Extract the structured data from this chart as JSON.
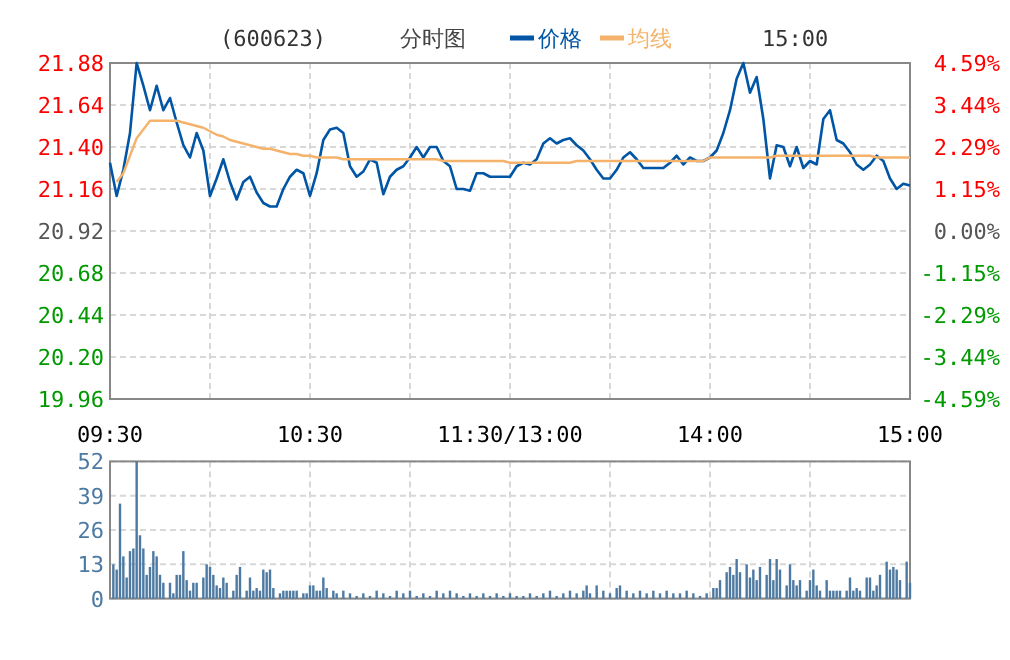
{
  "chart_data": [
    {
      "type": "line",
      "title": "分时图",
      "subtitle": "(600623)",
      "annotations": [
        "15:00"
      ],
      "legend": "top",
      "grid": true,
      "categories": [
        "09:30",
        null,
        null,
        null,
        null,
        null,
        null,
        null,
        null,
        null,
        null,
        null,
        null,
        null,
        null,
        null,
        null,
        null,
        null,
        null,
        null,
        null,
        null,
        null,
        null,
        null,
        null,
        null,
        null,
        null,
        "10:30",
        null,
        null,
        null,
        null,
        null,
        null,
        null,
        null,
        null,
        null,
        null,
        null,
        null,
        null,
        null,
        null,
        null,
        null,
        null,
        null,
        null,
        null,
        null,
        null,
        null,
        null,
        null,
        null,
        null,
        "11:30/13:00",
        null,
        null,
        null,
        null,
        null,
        null,
        null,
        null,
        null,
        null,
        null,
        null,
        null,
        null,
        null,
        null,
        null,
        null,
        null,
        null,
        null,
        null,
        null,
        null,
        null,
        null,
        null,
        null,
        null,
        "14:00",
        null,
        null,
        null,
        null,
        null,
        null,
        null,
        null,
        null,
        null,
        null,
        null,
        null,
        null,
        null,
        null,
        null,
        null,
        null,
        null,
        null,
        null,
        null,
        null,
        null,
        null,
        null,
        null,
        null,
        "15:00"
      ],
      "ylim": [
        19.96,
        21.88
      ],
      "yticks": [
        19.96,
        {
          "value": 20.2,
          "label": "20.20"
        },
        20.44,
        20.68,
        20.92,
        21.16,
        {
          "value": 21.4,
          "label": "21.40"
        },
        21.64,
        21.88
      ],
      "y2lim": [
        -4.59,
        4.59
      ],
      "y2ticks": [
        {
          "value": -4.59,
          "label": "-4.59%"
        },
        {
          "value": -3.44,
          "label": "-3.44%"
        },
        {
          "value": -2.29,
          "label": "-2.29%"
        },
        {
          "value": -1.15,
          "label": "-1.15%"
        },
        {
          "value": 0,
          "label": "0.00%"
        },
        {
          "value": 1.15,
          "label": "1.15%"
        },
        {
          "value": 2.29,
          "label": "2.29%"
        },
        {
          "value": 3.44,
          "label": "3.44%"
        },
        {
          "value": 4.59,
          "label": "4.59%"
        }
      ],
      "series": [
        {
          "name": "价格",
          "color": "#0055a5",
          "values": [
            21.31,
            21.12,
            21.27,
            21.48,
            21.88,
            21.75,
            21.61,
            21.75,
            21.61,
            21.68,
            21.54,
            21.41,
            21.34,
            21.48,
            21.38,
            21.12,
            21.22,
            21.33,
            21.2,
            21.1,
            21.2,
            21.23,
            21.14,
            21.08,
            21.06,
            21.06,
            21.16,
            21.23,
            21.27,
            21.25,
            21.12,
            21.25,
            21.44,
            21.5,
            21.51,
            21.48,
            21.29,
            21.23,
            21.26,
            21.33,
            21.31,
            21.13,
            21.23,
            21.27,
            21.29,
            21.34,
            21.4,
            21.34,
            21.4,
            21.4,
            21.32,
            21.29,
            21.16,
            21.16,
            21.15,
            21.25,
            21.25,
            21.23,
            21.23,
            21.23,
            21.23,
            21.29,
            21.31,
            21.3,
            21.33,
            21.42,
            21.45,
            21.42,
            21.44,
            21.45,
            21.41,
            21.38,
            21.33,
            21.27,
            21.22,
            21.22,
            21.27,
            21.34,
            21.37,
            21.33,
            21.28,
            21.28,
            21.28,
            21.28,
            21.31,
            21.35,
            21.3,
            21.34,
            21.32,
            21.32,
            21.34,
            21.38,
            21.48,
            21.61,
            21.79,
            21.88,
            21.71,
            21.8,
            21.56,
            21.22,
            21.41,
            21.4,
            21.29,
            21.4,
            21.28,
            21.32,
            21.3,
            21.56,
            21.61,
            21.44,
            21.42,
            21.37,
            21.3,
            21.27,
            21.3,
            21.35,
            21.32,
            21.22,
            21.16,
            21.19,
            21.18
          ]
        },
        {
          "name": "均线",
          "color": "#f5b26b",
          "values": [
            null,
            21.2,
            21.25,
            21.35,
            21.45,
            21.5,
            21.55,
            21.55,
            21.55,
            21.55,
            21.55,
            21.54,
            21.53,
            21.52,
            21.51,
            21.49,
            21.47,
            21.46,
            21.44,
            21.43,
            21.42,
            21.41,
            21.4,
            21.39,
            21.39,
            21.38,
            21.37,
            21.36,
            21.36,
            21.35,
            21.35,
            21.34,
            21.34,
            21.34,
            21.34,
            21.33,
            21.33,
            21.33,
            21.33,
            21.33,
            21.33,
            21.33,
            21.33,
            21.33,
            21.33,
            21.33,
            21.33,
            21.33,
            21.33,
            21.33,
            21.32,
            21.32,
            21.32,
            21.32,
            21.32,
            21.32,
            21.32,
            21.32,
            21.32,
            21.32,
            21.31,
            21.31,
            21.31,
            21.31,
            21.31,
            21.31,
            21.31,
            21.31,
            21.31,
            21.31,
            21.32,
            21.32,
            21.32,
            21.32,
            21.32,
            21.32,
            21.32,
            21.32,
            21.32,
            21.32,
            21.32,
            21.32,
            21.32,
            21.32,
            21.32,
            21.32,
            21.32,
            21.32,
            21.32,
            21.32,
            21.34,
            21.34,
            21.34,
            21.34,
            21.34,
            21.34,
            21.34,
            21.34,
            21.34,
            21.34,
            21.35,
            21.35,
            21.35,
            21.35,
            21.35,
            21.35,
            21.35,
            21.35,
            21.35,
            21.35,
            21.35,
            21.35,
            21.35,
            21.35,
            21.35,
            21.34,
            21.34,
            21.34,
            21.34,
            21.34,
            21.34
          ]
        }
      ]
    },
    {
      "type": "bar",
      "grid": true,
      "tick_labels": "y",
      "color": "#4d7aa3",
      "categories": [
        null,
        null,
        null,
        null,
        null,
        null,
        null,
        null,
        null,
        null,
        null,
        null,
        null,
        null,
        null,
        null,
        null,
        null,
        null,
        null,
        null,
        null,
        null,
        null,
        null,
        null,
        null,
        null,
        null,
        null,
        null,
        null,
        null,
        null,
        null,
        null,
        null,
        null,
        null,
        null,
        null,
        null,
        null,
        null,
        null,
        null,
        null,
        null,
        null,
        null,
        null,
        null,
        null,
        null,
        null,
        null,
        null,
        null,
        null,
        null,
        null,
        null,
        null,
        null,
        null,
        null,
        null,
        null,
        null,
        null,
        null,
        null,
        null,
        null,
        null,
        null,
        null,
        null,
        null,
        null,
        null,
        null,
        null,
        null,
        null,
        null,
        null,
        null,
        null,
        null,
        null,
        null,
        null,
        null,
        null,
        null,
        null,
        null,
        null,
        null,
        null,
        null,
        null,
        null,
        null,
        null,
        null,
        null,
        null,
        null,
        null,
        null,
        null,
        null,
        null,
        null,
        null,
        null,
        null,
        null,
        null,
        null,
        null,
        null,
        null,
        null,
        null,
        null,
        null,
        null,
        null,
        null,
        null,
        null,
        null,
        null,
        null,
        null,
        null,
        null,
        null,
        null,
        null,
        null,
        null,
        null,
        null,
        null,
        null,
        null,
        null,
        null,
        null,
        null,
        null,
        null,
        null,
        null,
        null,
        null,
        null,
        null,
        null,
        null,
        null,
        null,
        null,
        null,
        null,
        null,
        null,
        null,
        null,
        null,
        null,
        null,
        null,
        null,
        null,
        null,
        null,
        null,
        null,
        null,
        null,
        null,
        null,
        null,
        null,
        null,
        null,
        null,
        null,
        null,
        null,
        null,
        null,
        null,
        null,
        null,
        null,
        null,
        null,
        null,
        null,
        null,
        null,
        null,
        null,
        null,
        null,
        null,
        null,
        null,
        null,
        null,
        null,
        null,
        null,
        null,
        null,
        null,
        null,
        null,
        null,
        null,
        null,
        null,
        null,
        null,
        null,
        null,
        null,
        null,
        null,
        null,
        null,
        null,
        null,
        null,
        null
      ],
      "ylim": [
        0,
        52
      ],
      "yticks": [
        0,
        13,
        26,
        39,
        52
      ],
      "values": [
        null,
        13,
        11,
        36,
        16,
        8,
        18,
        19,
        52,
        24,
        19,
        9,
        12,
        18,
        16,
        9,
        6,
        null,
        6,
        2,
        9,
        9,
        18,
        7,
        3,
        6,
        6,
        null,
        8,
        13,
        12,
        9,
        5,
        4,
        8,
        6,
        null,
        3,
        9,
        12,
        null,
        3,
        8,
        3,
        4,
        3,
        11,
        10,
        11,
        4,
        null,
        2,
        3,
        3,
        3,
        3,
        3,
        null,
        2,
        2,
        5,
        5,
        3,
        3,
        8,
        4,
        null,
        3,
        2,
        null,
        3,
        null,
        2,
        null,
        1,
        null,
        2,
        null,
        1,
        null,
        3,
        null,
        2,
        null,
        1,
        null,
        3,
        null,
        2,
        null,
        3,
        null,
        1,
        null,
        2,
        null,
        1,
        null,
        3,
        null,
        2,
        null,
        3,
        null,
        2,
        null,
        1,
        null,
        2,
        null,
        1,
        null,
        2,
        null,
        1,
        null,
        2,
        null,
        1,
        null,
        2,
        null,
        1,
        null,
        1,
        null,
        2,
        null,
        1,
        null,
        2,
        null,
        3,
        null,
        1,
        null,
        2,
        null,
        3,
        null,
        2,
        null,
        3,
        5,
        2,
        null,
        5,
        null,
        3,
        null,
        2,
        null,
        4,
        5,
        null,
        3,
        null,
        2,
        null,
        3,
        null,
        2,
        null,
        3,
        null,
        2,
        null,
        3,
        null,
        2,
        null,
        2,
        null,
        3,
        null,
        2,
        null,
        1,
        null,
        2,
        null,
        4,
        4,
        7,
        null,
        10,
        12,
        9,
        15,
        10,
        null,
        13,
        8,
        11,
        7,
        12,
        null,
        9,
        15,
        7,
        15,
        11,
        null,
        5,
        13,
        7,
        5,
        7,
        null,
        3,
        7,
        11,
        5,
        3,
        null,
        7,
        3,
        3,
        3,
        3,
        null,
        3,
        8,
        3,
        4,
        3,
        null,
        8,
        8,
        3,
        5,
        9,
        null,
        14,
        11,
        12,
        11,
        7,
        null,
        14,
        6
      ]
    }
  ]
}
